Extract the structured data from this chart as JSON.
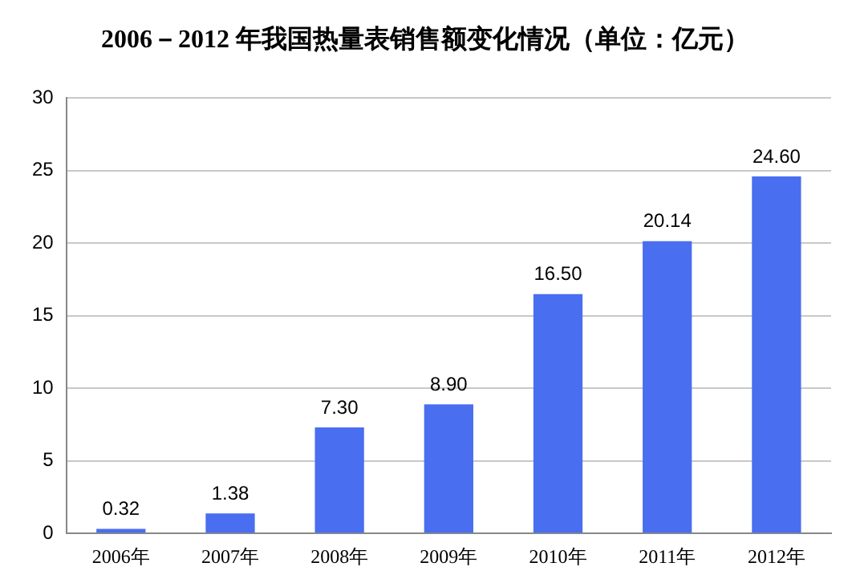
{
  "chart_data": {
    "type": "bar",
    "title": "2006－2012 年我国热量表销售额变化情况（单位：亿元）",
    "categories": [
      "2006年",
      "2007年",
      "2008年",
      "2009年",
      "2010年",
      "2011年",
      "2012年"
    ],
    "values": [
      0.32,
      1.38,
      7.3,
      8.9,
      16.5,
      20.14,
      24.6
    ],
    "value_labels": [
      "0.32",
      "1.38",
      "7.30",
      "8.90",
      "16.50",
      "20.14",
      "24.60"
    ],
    "color": "#4a6ef0",
    "ylim": [
      0,
      30
    ],
    "yticks": [
      0,
      5,
      10,
      15,
      20,
      25,
      30
    ],
    "grid": "y",
    "legend": false
  }
}
